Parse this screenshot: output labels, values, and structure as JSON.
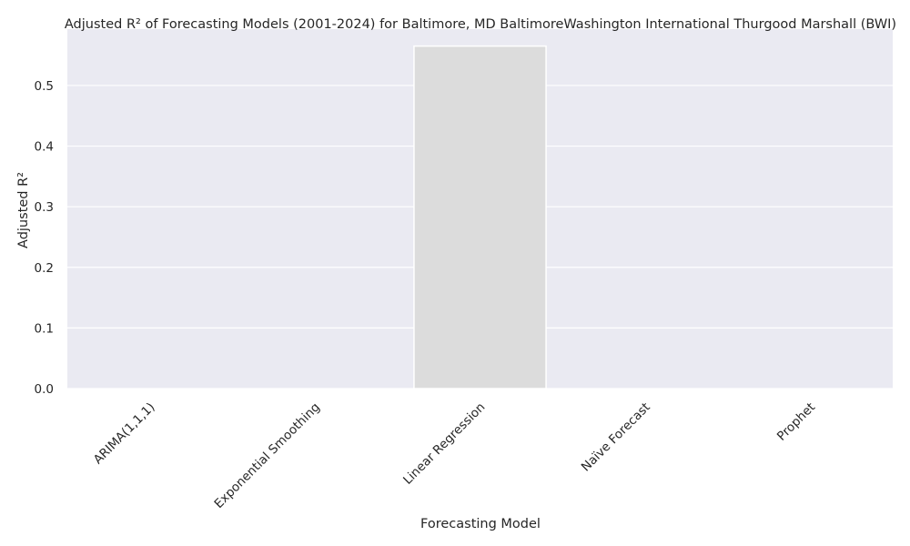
{
  "chart_data": {
    "type": "bar",
    "title": "Adjusted R² of Forecasting Models (2001-2024) for Baltimore, MD BaltimoreWashington International Thurgood Marshall (BWI)",
    "xlabel": "Forecasting Model",
    "ylabel": "Adjusted R²",
    "categories": [
      "ARIMA(1,1,1)",
      "Exponential Smoothing",
      "Linear Regression",
      "Naïve Forecast",
      "Prophet"
    ],
    "values": [
      0,
      0,
      0.565,
      0,
      0
    ],
    "ylim": [
      0,
      0.593
    ],
    "yticks": [
      "0.0",
      "0.1",
      "0.2",
      "0.3",
      "0.4",
      "0.5"
    ],
    "grid": true,
    "legend": "none",
    "colors": {
      "plot_background": "#eaeaf2",
      "grid": "#ffffff",
      "bar": "#dcdcdc",
      "text": "#262626"
    }
  }
}
